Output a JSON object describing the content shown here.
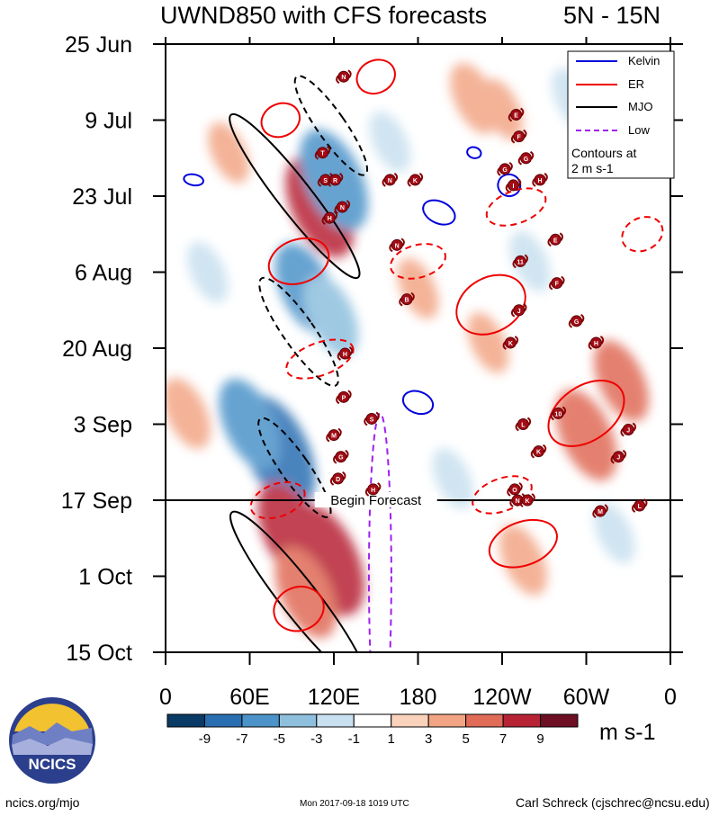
{
  "title": "UWND850 with CFS forecasts",
  "lat_range": "5N - 15N",
  "chart_data": {
    "type": "heatmap",
    "title": "UWND850 with CFS forecasts",
    "subtitle": "5N - 15N",
    "xlabel": "Longitude",
    "ylabel": "Date (2017)",
    "x_ticks": [
      "0",
      "60E",
      "120E",
      "180",
      "120W",
      "60W",
      "0"
    ],
    "y_ticks": [
      "25 Jun",
      "9 Jul",
      "23 Jul",
      "6 Aug",
      "20 Aug",
      "3 Sep",
      "17 Sep",
      "1 Oct",
      "15 Oct"
    ],
    "xlim_deg_east": [
      0,
      360
    ],
    "ylim_days_since_25jun": [
      0,
      112
    ],
    "colorbar": {
      "units": "m s-1",
      "tick_labels": [
        "-9",
        "-7",
        "-5",
        "-3",
        "-1",
        "1",
        "3",
        "5",
        "7",
        "9"
      ],
      "colors": [
        "#0a3a66",
        "#2a6eb2",
        "#4b93c9",
        "#8ec0de",
        "#c8e0ef",
        "#ffffff",
        "#fad2bb",
        "#f2a585",
        "#e06b57",
        "#b72335",
        "#6e0f24"
      ]
    },
    "legend": {
      "position": "top-right",
      "entries": [
        {
          "label": "Kelvin",
          "color": "#0000dd",
          "style": "solid"
        },
        {
          "label": "ER",
          "color": "#ee0000",
          "style": "solid"
        },
        {
          "label": "MJO",
          "color": "#000000",
          "style": "solid"
        },
        {
          "label": "Low",
          "color": "#a020f0",
          "style": "dashed"
        }
      ],
      "note_line1": "Contours at",
      "note_line2": "2 m s-1"
    },
    "forecast_start": {
      "label": "Begin Forecast",
      "day": 84
    },
    "anomaly_blobs": [
      {
        "lon": 110,
        "day": 30,
        "value": 7
      },
      {
        "lon": 120,
        "day": 25,
        "value": -7
      },
      {
        "lon": 100,
        "day": 45,
        "value": -6
      },
      {
        "lon": 118,
        "day": 50,
        "value": -5
      },
      {
        "lon": 80,
        "day": 75,
        "value": -8
      },
      {
        "lon": 60,
        "day": 70,
        "value": -6
      },
      {
        "lon": 90,
        "day": 90,
        "value": 7
      },
      {
        "lon": 115,
        "day": 95,
        "value": 8
      },
      {
        "lon": 100,
        "day": 101,
        "value": 6
      },
      {
        "lon": 255,
        "day": 95,
        "value": 4
      },
      {
        "lon": 300,
        "day": 72,
        "value": 6
      },
      {
        "lon": 325,
        "day": 62,
        "value": 5
      },
      {
        "lon": 220,
        "day": 10,
        "value": 4
      },
      {
        "lon": 240,
        "day": 12,
        "value": 3
      },
      {
        "lon": 180,
        "day": 45,
        "value": 3
      },
      {
        "lon": 230,
        "day": 55,
        "value": 3
      },
      {
        "lon": 30,
        "day": 42,
        "value": -3
      },
      {
        "lon": 160,
        "day": 18,
        "value": -3
      },
      {
        "lon": 205,
        "day": 80,
        "value": -3
      },
      {
        "lon": 320,
        "day": 90,
        "value": -3
      },
      {
        "lon": 45,
        "day": 20,
        "value": 3
      },
      {
        "lon": 15,
        "day": 68,
        "value": 4
      },
      {
        "lon": 260,
        "day": 40,
        "value": -3
      },
      {
        "lon": 290,
        "day": 10,
        "value": -3
      }
    ],
    "contours": [
      {
        "wave": "MJO",
        "sign": "+",
        "lon": 92,
        "day": 28,
        "dlon": 12,
        "dday": 19,
        "angle": -38
      },
      {
        "wave": "MJO",
        "sign": "+",
        "lon": 95,
        "day": 102,
        "dlon": 13,
        "dday": 20,
        "angle": -38
      },
      {
        "wave": "MJO",
        "sign": "-",
        "lon": 118,
        "day": 15,
        "dlon": 10,
        "dday": 11,
        "angle": -35
      },
      {
        "wave": "MJO",
        "sign": "-",
        "lon": 95,
        "day": 53,
        "dlon": 11,
        "dday": 12,
        "angle": -35
      },
      {
        "wave": "MJO",
        "sign": "-",
        "lon": 92,
        "day": 78,
        "dlon": 10,
        "dday": 11,
        "angle": -35
      },
      {
        "wave": "Low",
        "sign": "+",
        "lon": 153,
        "day": 98,
        "dlon": 8,
        "dday": 30,
        "angle": 0
      },
      {
        "wave": "Kelvin",
        "sign": "+",
        "lon": 195,
        "day": 31,
        "dlon": 12,
        "dday": 2,
        "angle": 25
      },
      {
        "wave": "Kelvin",
        "sign": "+",
        "lon": 180,
        "day": 66,
        "dlon": 11,
        "dday": 2,
        "angle": 20
      },
      {
        "wave": "Kelvin",
        "sign": "+",
        "lon": 245,
        "day": 26,
        "dlon": 8,
        "dday": 2,
        "angle": 20
      },
      {
        "wave": "Kelvin",
        "sign": "+",
        "lon": 220,
        "day": 20,
        "dlon": 5,
        "dday": 1,
        "angle": 15
      },
      {
        "wave": "Kelvin",
        "sign": "+",
        "lon": 20,
        "day": 25,
        "dlon": 7,
        "dday": 1,
        "angle": 10
      },
      {
        "wave": "ER",
        "sign": "+",
        "lon": 82,
        "day": 14,
        "dlon": 14,
        "dday": 3,
        "angle": -25
      },
      {
        "wave": "ER",
        "sign": "+",
        "lon": 95,
        "day": 40,
        "dlon": 22,
        "dday": 4,
        "angle": -20
      },
      {
        "wave": "ER",
        "sign": "+",
        "lon": 150,
        "day": 6,
        "dlon": 14,
        "dday": 3,
        "angle": -25
      },
      {
        "wave": "ER",
        "sign": "+",
        "lon": 232,
        "day": 48,
        "dlon": 26,
        "dday": 5,
        "angle": -30
      },
      {
        "wave": "ER",
        "sign": "+",
        "lon": 300,
        "day": 68,
        "dlon": 30,
        "dday": 5,
        "angle": -35
      },
      {
        "wave": "ER",
        "sign": "+",
        "lon": 95,
        "day": 104,
        "dlon": 18,
        "dday": 4,
        "angle": -20
      },
      {
        "wave": "ER",
        "sign": "+",
        "lon": 255,
        "day": 92,
        "dlon": 25,
        "dday": 4,
        "angle": -20
      },
      {
        "wave": "ER",
        "sign": "-",
        "lon": 110,
        "day": 58,
        "dlon": 25,
        "dday": 3,
        "angle": -20
      },
      {
        "wave": "ER",
        "sign": "-",
        "lon": 180,
        "day": 40,
        "dlon": 20,
        "dday": 3,
        "angle": -15
      },
      {
        "wave": "ER",
        "sign": "-",
        "lon": 250,
        "day": 30,
        "dlon": 22,
        "dday": 3,
        "angle": -20
      },
      {
        "wave": "ER",
        "sign": "-",
        "lon": 80,
        "day": 84,
        "dlon": 20,
        "dday": 3,
        "angle": -20
      },
      {
        "wave": "ER",
        "sign": "-",
        "lon": 240,
        "day": 83,
        "dlon": 22,
        "dday": 3,
        "angle": -20
      },
      {
        "wave": "ER",
        "sign": "-",
        "lon": 340,
        "day": 35,
        "dlon": 15,
        "dday": 3,
        "angle": -25
      }
    ],
    "storms": [
      {
        "label": "N",
        "lon": 127,
        "day": 6
      },
      {
        "label": "T",
        "lon": 112,
        "day": 20
      },
      {
        "label": "S",
        "lon": 114,
        "day": 25
      },
      {
        "label": "R",
        "lon": 121,
        "day": 25
      },
      {
        "label": "N",
        "lon": 126,
        "day": 30
      },
      {
        "label": "H",
        "lon": 117,
        "day": 32
      },
      {
        "label": "N",
        "lon": 160,
        "day": 25
      },
      {
        "label": "K",
        "lon": 178,
        "day": 25
      },
      {
        "label": "N",
        "lon": 165,
        "day": 37
      },
      {
        "label": "B",
        "lon": 172,
        "day": 47
      },
      {
        "label": "H",
        "lon": 128,
        "day": 57
      },
      {
        "label": "P",
        "lon": 127,
        "day": 65
      },
      {
        "label": "S",
        "lon": 147,
        "day": 69
      },
      {
        "label": "M",
        "lon": 120,
        "day": 72
      },
      {
        "label": "G",
        "lon": 125,
        "day": 76
      },
      {
        "label": "D",
        "lon": 123,
        "day": 80
      },
      {
        "label": "H",
        "lon": 148,
        "day": 82
      },
      {
        "label": "E",
        "lon": 250,
        "day": 13
      },
      {
        "label": "F",
        "lon": 252,
        "day": 17
      },
      {
        "label": "G",
        "lon": 257,
        "day": 21
      },
      {
        "label": "G",
        "lon": 242,
        "day": 23
      },
      {
        "label": "H",
        "lon": 267,
        "day": 25
      },
      {
        "label": "I",
        "lon": 248,
        "day": 26
      },
      {
        "label": "E",
        "lon": 278,
        "day": 36
      },
      {
        "label": "11",
        "lon": 253,
        "day": 40
      },
      {
        "label": "F",
        "lon": 279,
        "day": 44
      },
      {
        "label": "J",
        "lon": 252,
        "day": 49
      },
      {
        "label": "G",
        "lon": 293,
        "day": 51
      },
      {
        "label": "K",
        "lon": 246,
        "day": 55
      },
      {
        "label": "H",
        "lon": 307,
        "day": 55
      },
      {
        "label": "10",
        "lon": 280,
        "day": 68
      },
      {
        "label": "L",
        "lon": 255,
        "day": 70
      },
      {
        "label": "J",
        "lon": 330,
        "day": 71
      },
      {
        "label": "K",
        "lon": 266,
        "day": 75
      },
      {
        "label": "J",
        "lon": 323,
        "day": 76
      },
      {
        "label": "O",
        "lon": 249,
        "day": 82
      },
      {
        "label": "N",
        "lon": 251,
        "day": 84
      },
      {
        "label": "K",
        "lon": 258,
        "day": 84
      },
      {
        "label": "M",
        "lon": 310,
        "day": 86
      },
      {
        "label": "L",
        "lon": 338,
        "day": 85
      }
    ]
  },
  "footer": {
    "site": "ncics.org/mjo",
    "timestamp": "Mon 2017-09-18 1019 UTC",
    "author": "Carl Schreck (cjschrec@ncsu.edu)",
    "logo_text": "NCICS"
  }
}
